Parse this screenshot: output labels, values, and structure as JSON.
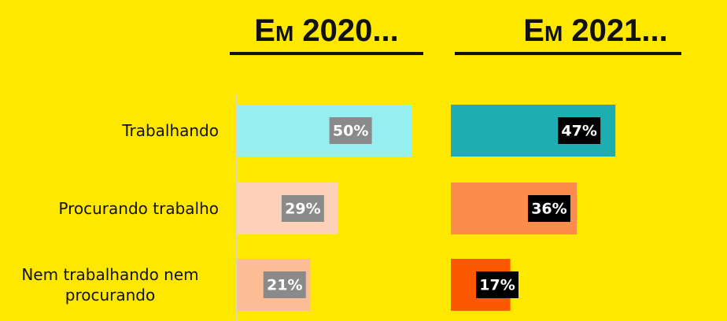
{
  "chart_data": [
    {
      "type": "hbar",
      "title": "Em 2020...",
      "categories": [
        "Trabalhando",
        "Procurando trabalho",
        "Nem trabalhando nem procurando"
      ],
      "values": [
        50,
        29,
        21
      ],
      "value_labels": [
        "50%",
        "29%",
        "21%"
      ],
      "colors": [
        "#97eef0",
        "#fdd0b8",
        "#fcbc96"
      ],
      "label_background": "#8a8a8a"
    },
    {
      "type": "hbar",
      "title": "Em 2021...",
      "categories": [
        "Trabalhando",
        "Procurando trabalho",
        "Nem trabalhando nem procurando"
      ],
      "values": [
        47,
        36,
        17
      ],
      "value_labels": [
        "47%",
        "36%",
        "17%"
      ],
      "colors": [
        "#1eadb0",
        "#fc8c4c",
        "#fc5800"
      ],
      "label_background": "#000000"
    }
  ]
}
